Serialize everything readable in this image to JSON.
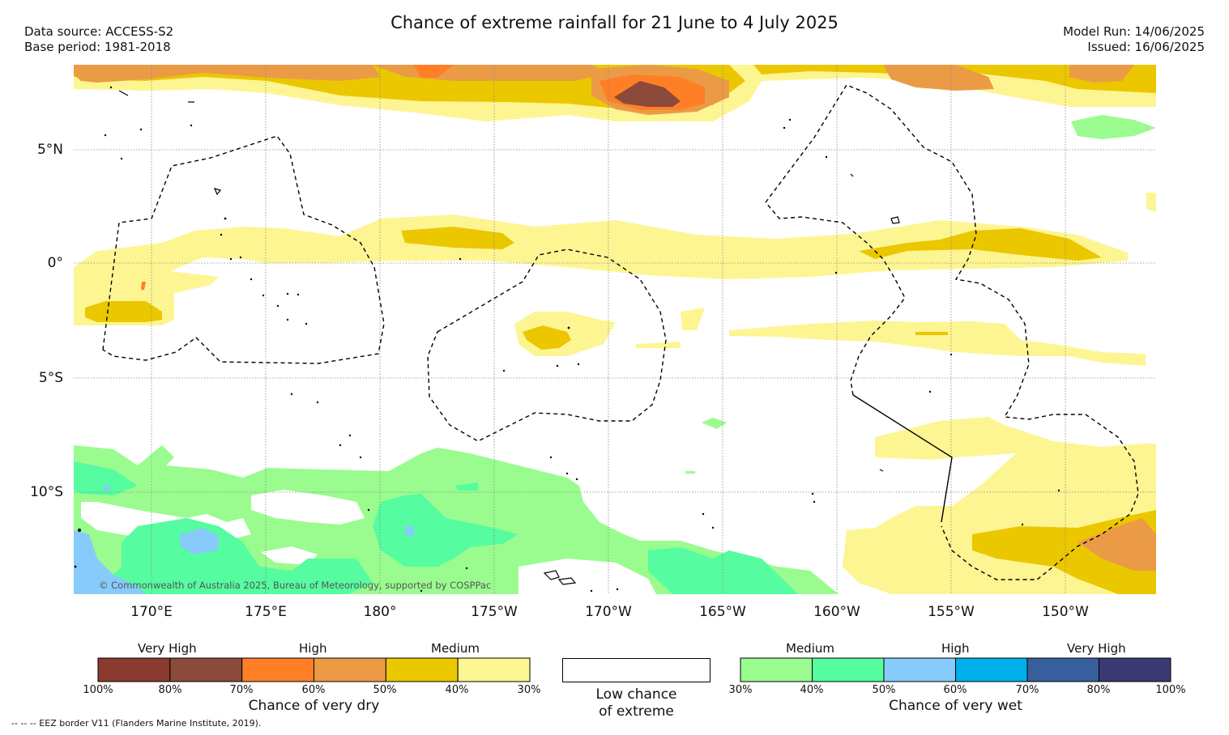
{
  "title": "Chance of extreme rainfall for 21 June to 4 July 2025",
  "meta_left": [
    "Data source: ACCESS-S2",
    "Base period: 1981-2018"
  ],
  "meta_right": [
    "Model Run: 14/06/2025",
    "Issued: 16/06/2025"
  ],
  "map": {
    "lat_labels": [
      "5°N",
      "0°",
      "5°S",
      "10°S"
    ],
    "lon_labels": [
      "170°E",
      "175°E",
      "180°",
      "175°W",
      "170°W",
      "165°W",
      "160°W",
      "155°W",
      "150°W"
    ],
    "copyright": "© Commonwealth of Australia 2025, Bureau of Meteorology, supported by COSPPac",
    "grid": true
  },
  "legend": {
    "dry": {
      "levels": [
        "Very High",
        "High",
        "Medium"
      ],
      "ticks": [
        "100%",
        "80%",
        "70%",
        "60%",
        "50%",
        "40%",
        "30%"
      ],
      "caption": "Chance of very dry",
      "colors": [
        "#8b3a30",
        "#8b4a3a",
        "#ff7f27",
        "#eb9b45",
        "#ebc700",
        "#fdf592"
      ]
    },
    "low": {
      "caption_line1": "Low chance",
      "caption_line2": "of extreme",
      "color": "#ffffff"
    },
    "wet": {
      "levels": [
        "Medium",
        "High",
        "Very High"
      ],
      "ticks": [
        "30%",
        "40%",
        "50%",
        "60%",
        "70%",
        "80%",
        "100%"
      ],
      "caption": "Chance of very wet",
      "colors": [
        "#9afc8f",
        "#55fca0",
        "#87cbfa",
        "#00b0ea",
        "#365f9b",
        "#3b3a73"
      ]
    }
  },
  "footer_note": "--  --  -- EEZ border V11 (Flanders Marine Institute, 2019)."
}
